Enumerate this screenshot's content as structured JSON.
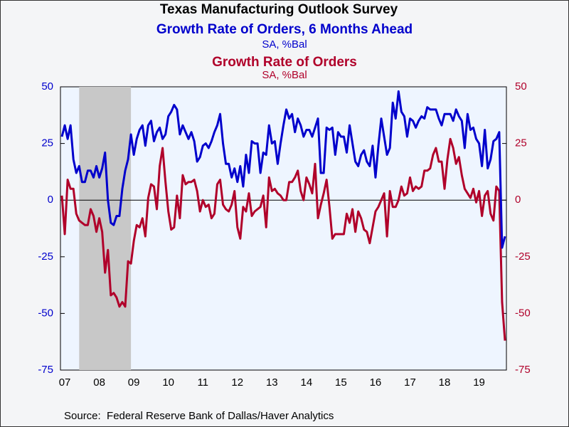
{
  "chart_data": {
    "type": "line",
    "title": "Texas Manufacturing Outlook Survey",
    "subtitles": [
      {
        "text": "Growth Rate of Orders, 6 Months Ahead",
        "unit": "SA, %Bal",
        "color": "#0000cc"
      },
      {
        "text": "Growth Rate of Orders",
        "unit": "SA, %Bal",
        "color": "#b0002a"
      }
    ],
    "source": "Source:  Federal Reserve Bank of Dallas/Haver Analytics",
    "categories": [
      null,
      "07",
      null,
      null,
      null,
      null,
      null,
      null,
      null,
      null,
      null,
      null,
      null,
      "08",
      null,
      null,
      null,
      null,
      null,
      null,
      null,
      null,
      null,
      null,
      null,
      "09",
      null,
      null,
      null,
      null,
      null,
      null,
      null,
      null,
      null,
      null,
      null,
      "10",
      null,
      null,
      null,
      null,
      null,
      null,
      null,
      null,
      null,
      null,
      null,
      "11",
      null,
      null,
      null,
      null,
      null,
      null,
      null,
      null,
      null,
      null,
      null,
      "12",
      null,
      null,
      null,
      null,
      null,
      null,
      null,
      null,
      null,
      null,
      null,
      "13",
      null,
      null,
      null,
      null,
      null,
      null,
      null,
      null,
      null,
      null,
      null,
      "14",
      null,
      null,
      null,
      null,
      null,
      null,
      null,
      null,
      null,
      null,
      null,
      "15",
      null,
      null,
      null,
      null,
      null,
      null,
      null,
      null,
      null,
      null,
      null,
      "16",
      null,
      null,
      null,
      null,
      null,
      null,
      null,
      null,
      null,
      null,
      null,
      "17",
      null,
      null,
      null,
      null,
      null,
      null,
      null,
      null,
      null,
      null,
      null,
      "18",
      null,
      null,
      null,
      null,
      null,
      null,
      null,
      null,
      null,
      null,
      null,
      "19",
      null,
      null,
      null,
      null,
      null,
      null,
      null,
      null,
      null
    ],
    "series": [
      {
        "name": "Growth Rate of Orders, 6 Months Ahead",
        "color": "#0000cc",
        "axis": "y",
        "values": [
          28,
          33,
          27,
          33,
          18,
          12,
          15,
          8,
          8,
          13,
          13,
          10,
          15,
          10,
          14,
          21,
          0,
          -10,
          -11,
          -7,
          -7,
          5,
          13,
          18,
          29,
          20,
          27,
          31,
          33,
          24,
          33,
          35,
          26,
          30,
          32,
          27,
          29,
          37,
          39,
          42,
          40,
          29,
          33,
          30,
          27,
          30,
          26,
          17,
          19,
          24,
          25,
          23,
          26,
          30,
          33,
          38,
          25,
          16,
          16,
          10,
          14,
          8,
          15,
          6,
          20,
          12,
          26,
          25,
          25,
          12,
          21,
          20,
          33,
          25,
          26,
          16,
          25,
          33,
          40,
          36,
          38,
          30,
          36,
          33,
          28,
          31,
          31,
          28,
          32,
          36,
          12,
          12,
          32,
          31,
          32,
          20,
          30,
          28,
          28,
          21,
          33,
          25,
          17,
          15,
          20,
          22,
          17,
          15,
          24,
          10,
          24,
          36,
          28,
          20,
          23,
          43,
          36,
          48,
          39,
          37,
          28,
          36,
          35,
          32,
          35,
          37,
          36,
          41,
          40,
          40,
          40,
          36,
          33,
          38,
          38,
          38,
          35,
          40,
          37,
          35,
          23,
          38,
          31,
          32,
          27,
          25,
          15,
          31,
          14,
          18,
          26,
          27,
          30,
          -21,
          -16
        ]
      },
      {
        "name": "Growth Rate of Orders",
        "color": "#b0002a",
        "axis": "y2",
        "values": [
          2,
          -15,
          9,
          5,
          5,
          -6,
          -9,
          -10,
          -11,
          -11,
          -4,
          -7,
          -14,
          -8,
          -14,
          -32,
          -22,
          -42,
          -41,
          -43,
          -47,
          -45,
          -47,
          -27,
          -28,
          -18,
          -11,
          -12,
          -8,
          -16,
          1,
          7,
          6,
          -4,
          15,
          23,
          8,
          -5,
          -13,
          -12,
          2,
          -8,
          11,
          7,
          8,
          8,
          9,
          4,
          -5,
          0,
          -3,
          -2,
          -8,
          -6,
          7,
          9,
          -2,
          -4,
          -5,
          -2,
          4,
          -12,
          -17,
          -3,
          -5,
          3,
          -7,
          -5,
          -4,
          -3,
          2,
          -12,
          10,
          4,
          5,
          3,
          2,
          0,
          0,
          8,
          8,
          10,
          13,
          4,
          0,
          10,
          7,
          3,
          16,
          -8,
          -2,
          3,
          9,
          -3,
          -17,
          -15,
          -15,
          -15,
          -15,
          -6,
          -10,
          -4,
          -14,
          -5,
          -8,
          -13,
          -14,
          -19,
          -12,
          -5,
          -3,
          0,
          3,
          -16,
          4,
          -3,
          -3,
          0,
          6,
          2,
          3,
          10,
          4,
          6,
          5,
          6,
          13,
          13,
          14,
          20,
          23,
          17,
          17,
          5,
          18,
          27,
          23,
          16,
          19,
          11,
          5,
          3,
          1,
          5,
          -1,
          4,
          -7,
          2,
          4,
          -6,
          -9,
          6,
          4,
          -45,
          -62
        ]
      }
    ],
    "ylim": [
      -75,
      50
    ],
    "yticks": [
      50,
      25,
      0,
      -25,
      -50,
      -75
    ],
    "y2lim": [
      -75,
      50
    ],
    "y2ticks": [
      50,
      25,
      0,
      -25,
      -50,
      -75
    ],
    "shaded": [
      6,
      24
    ]
  }
}
